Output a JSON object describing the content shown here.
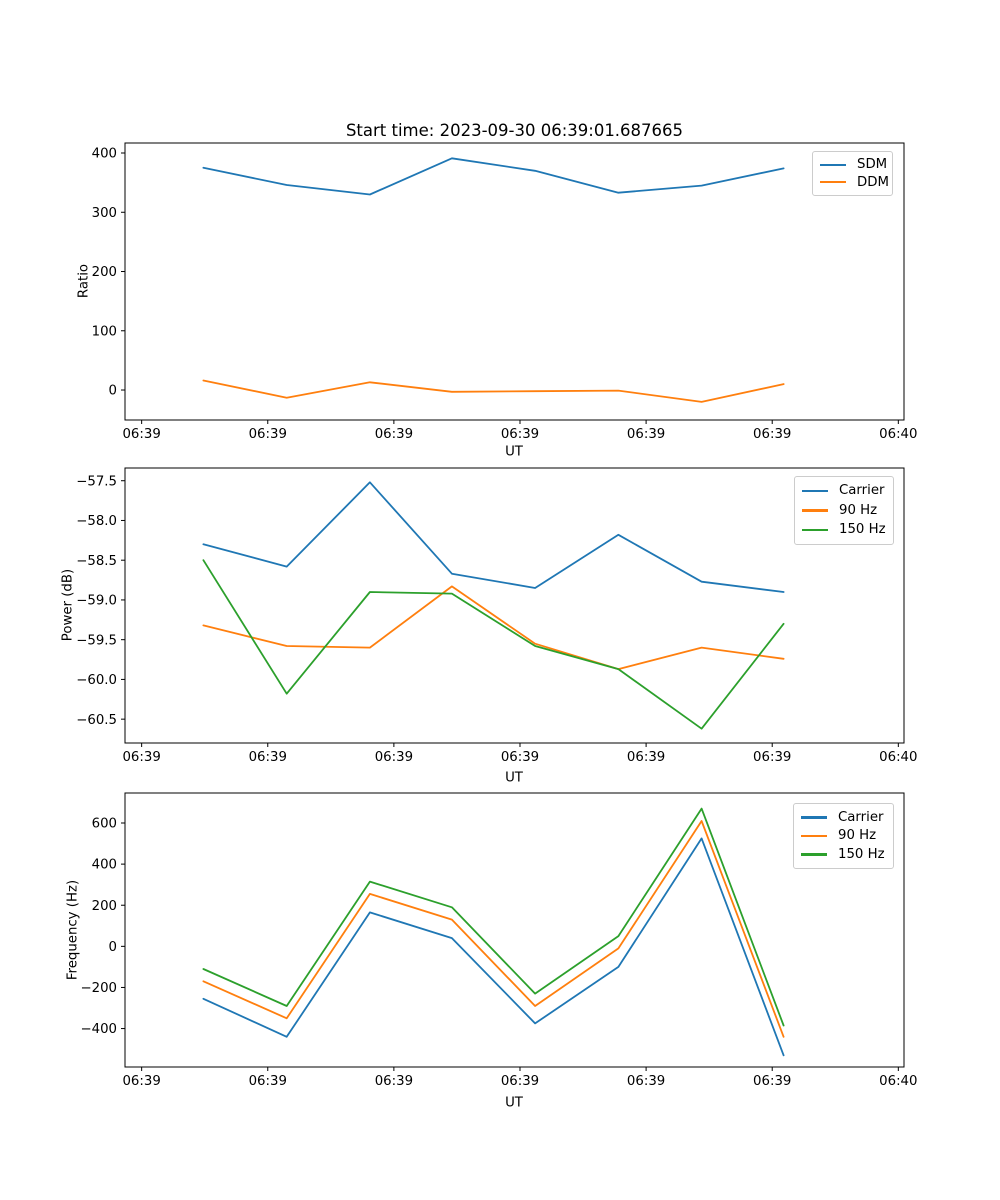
{
  "figure": {
    "background": "#ffffff",
    "title": "Start time: 2023-09-30 06:39:01.687665"
  },
  "colors": {
    "series_blue": "#1f77b4",
    "series_orange": "#ff7f0e",
    "series_green": "#2ca02c",
    "axis": "#000000",
    "legend_border": "#cccccc"
  },
  "x_axis": {
    "label": "UT",
    "tick_labels": [
      "06:39",
      "06:39",
      "06:39",
      "06:39",
      "06:39",
      "06:39",
      "06:40"
    ],
    "tick_seconds": [
      0,
      10,
      20,
      30,
      40,
      50,
      60
    ],
    "xlim_seconds": [
      -1.32,
      60.45
    ],
    "sample_seconds": [
      4.9,
      11.5,
      18.1,
      24.6,
      31.2,
      37.8,
      44.4,
      50.9
    ]
  },
  "chart_data": [
    {
      "type": "line",
      "title": "Start time: 2023-09-30 06:39:01.687665",
      "xlabel": "UT",
      "ylabel": "Ratio",
      "grid": false,
      "legend_position": "upper right",
      "ylim": [
        -50.6,
        416.9
      ],
      "y_ticks": [
        0,
        100,
        200,
        300,
        400
      ],
      "y_tick_labels": [
        "0",
        "100",
        "200",
        "300",
        "400"
      ],
      "series": [
        {
          "name": "SDM",
          "color": "#1f77b4",
          "values": [
            375,
            346,
            330,
            391,
            370,
            333,
            345,
            374
          ]
        },
        {
          "name": "DDM",
          "color": "#ff7f0e",
          "values": [
            16,
            -13,
            13,
            -3,
            -2,
            -1,
            -20,
            10
          ]
        }
      ]
    },
    {
      "type": "line",
      "xlabel": "UT",
      "ylabel": "Power (dB)",
      "grid": false,
      "legend_position": "upper right",
      "ylim": [
        -60.8,
        -57.34
      ],
      "y_ticks": [
        -57.5,
        -58.0,
        -58.5,
        -59.0,
        -59.5,
        -60.0,
        -60.5
      ],
      "y_tick_labels": [
        "−57.5",
        "−58.0",
        "−58.5",
        "−59.0",
        "−59.5",
        "−60.0",
        "−60.5"
      ],
      "series": [
        {
          "name": "Carrier",
          "color": "#1f77b4",
          "values": [
            -58.3,
            -58.58,
            -57.52,
            -58.67,
            -58.85,
            -58.18,
            -58.77,
            -58.9
          ]
        },
        {
          "name": "90 Hz",
          "color": "#ff7f0e",
          "values": [
            -59.32,
            -59.58,
            -59.6,
            -58.83,
            -59.55,
            -59.87,
            -59.6,
            -59.74
          ]
        },
        {
          "name": "150 Hz",
          "color": "#2ca02c",
          "values": [
            -58.5,
            -60.18,
            -58.9,
            -58.92,
            -59.58,
            -59.87,
            -60.62,
            -59.3
          ]
        }
      ]
    },
    {
      "type": "line",
      "xlabel": "UT",
      "ylabel": "Frequency (Hz)",
      "grid": false,
      "legend_position": "upper right",
      "ylim": [
        -587,
        746
      ],
      "y_ticks": [
        600,
        400,
        200,
        0,
        -200,
        -400
      ],
      "y_tick_labels": [
        "600",
        "400",
        "200",
        "0",
        "−200",
        "−400"
      ],
      "series": [
        {
          "name": "Carrier",
          "color": "#1f77b4",
          "values": [
            -255,
            -440,
            165,
            40,
            -375,
            -100,
            525,
            -530
          ]
        },
        {
          "name": "90 Hz",
          "color": "#ff7f0e",
          "values": [
            -170,
            -350,
            255,
            130,
            -290,
            -10,
            610,
            -440
          ]
        },
        {
          "name": "150 Hz",
          "color": "#2ca02c",
          "values": [
            -110,
            -290,
            315,
            190,
            -230,
            50,
            670,
            -385
          ]
        }
      ]
    }
  ]
}
